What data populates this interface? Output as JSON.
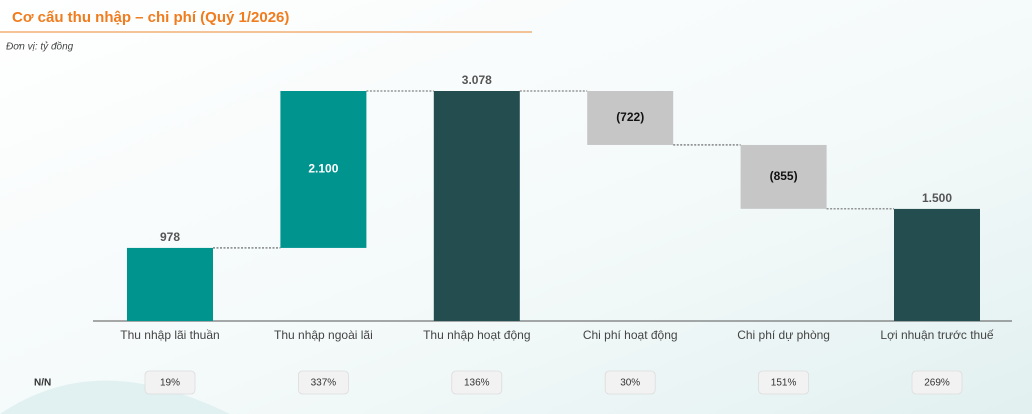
{
  "chart_data": {
    "type": "waterfall",
    "title": "Cơ cấu thu nhập – chi phí (Quý 1/2026)",
    "subtitle": "Đơn vị: tỷ đồng",
    "categories": [
      "Thu nhập lãi thuần",
      "Thu nhập ngoài lãi",
      "Thu nhập hoạt động",
      "Chi phí hoạt động",
      "Chi phí dự phòng",
      "Lợi nhuận trước thuế"
    ],
    "values": [
      978,
      2100,
      3078,
      -722,
      -855,
      1500
    ],
    "value_labels": [
      "978",
      "2.100",
      "3.078",
      "(722)",
      "(855)",
      "1.500"
    ],
    "measures": [
      "relative",
      "relative",
      "total",
      "relative",
      "relative",
      "total"
    ],
    "colors": {
      "increase": "#00948f",
      "decrease": "#c6c6c6",
      "total": "#234d4f"
    },
    "yoy": {
      "label": "N/N",
      "values": [
        19,
        337,
        136,
        30,
        151,
        269
      ],
      "value_labels": [
        "19%",
        "337%",
        "136%",
        "30%",
        "151%",
        "269%"
      ]
    }
  }
}
